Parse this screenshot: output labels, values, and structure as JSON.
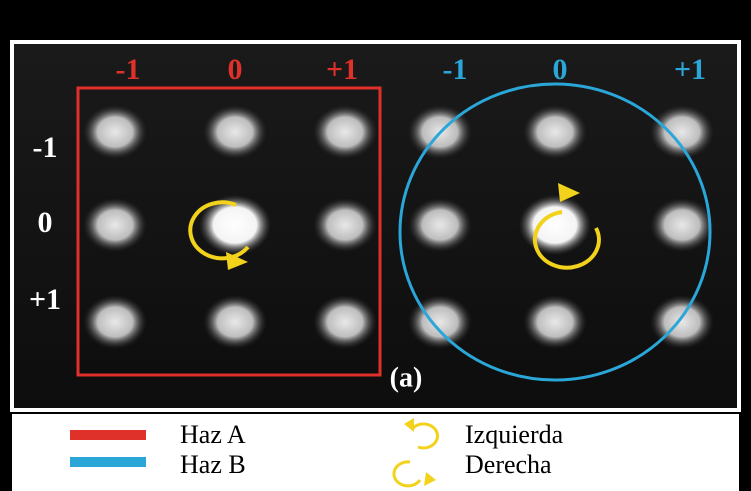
{
  "haz_a": {
    "columns": [
      "-1",
      "0",
      "+1"
    ]
  },
  "haz_b": {
    "columns": [
      "-1",
      "0",
      "+1"
    ]
  },
  "rows": [
    "-1",
    "0",
    "+1"
  ],
  "panel_label": "(a)",
  "legend": {
    "beams": [
      "Haz A",
      "Haz B"
    ],
    "rotations": [
      "Izquierda",
      "Derecha"
    ]
  }
}
